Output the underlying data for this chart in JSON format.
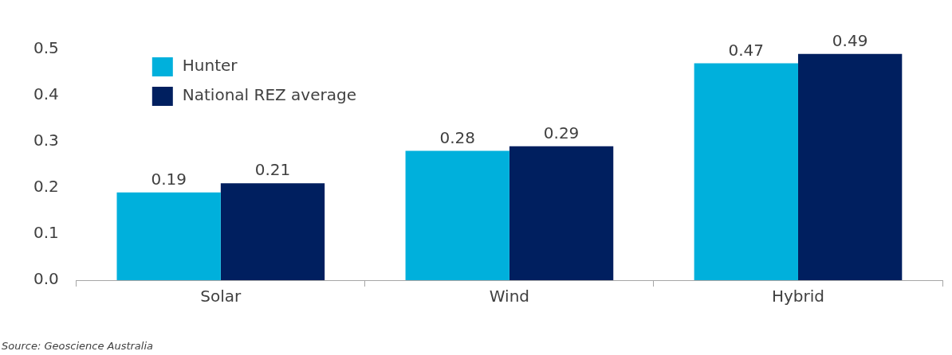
{
  "chart_data": {
    "type": "bar",
    "categories": [
      "Solar",
      "Wind",
      "Hybrid"
    ],
    "series": [
      {
        "name": "Hunter",
        "color": "#00b0dc",
        "values": [
          0.19,
          0.28,
          0.47
        ]
      },
      {
        "name": "National REZ average",
        "color": "#001f5f",
        "values": [
          0.21,
          0.29,
          0.49
        ]
      }
    ],
    "ylim": [
      0,
      0.5
    ],
    "yticks": [
      {
        "value": 0,
        "label": "0.0"
      },
      0.1,
      0.2,
      0.3,
      0.4,
      0.5
    ],
    "data_labels": true,
    "grid": false,
    "legend": "top left",
    "annotations": [
      "Source: Geoscience Australia"
    ]
  }
}
